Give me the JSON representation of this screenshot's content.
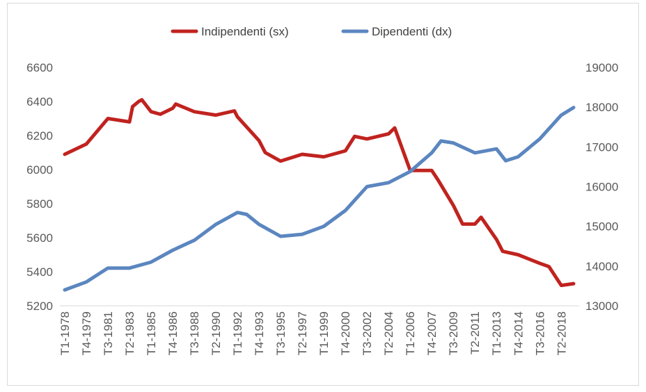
{
  "chart_data": {
    "type": "line",
    "title": "",
    "xlabel": "",
    "ylabel_left": "",
    "ylabel_right": "",
    "legend_position": "top",
    "grid": false,
    "x_tick_labels": [
      "T1-1978",
      "T4-1979",
      "T3-1981",
      "T2-1983",
      "T1-1985",
      "T4-1986",
      "T3-1988",
      "T2-1990",
      "T1-1992",
      "T4-1993",
      "T3-1995",
      "T2-1997",
      "T1-1999",
      "T4-2000",
      "T3-2002",
      "T2-2004",
      "T1-2006",
      "T4-2007",
      "T3-2009",
      "T2-2011",
      "T1-2013",
      "T4-2014",
      "T3-2016",
      "T2-2018"
    ],
    "y_left": {
      "ticks": [
        "5200",
        "5400",
        "5600",
        "5800",
        "6000",
        "6200",
        "6400",
        "6600"
      ],
      "min": 5200,
      "max": 6600
    },
    "y_right": {
      "ticks": [
        "13000",
        "14000",
        "15000",
        "16000",
        "17000",
        "18000",
        "19000"
      ],
      "min": 13000,
      "max": 19000
    },
    "series": [
      {
        "name": "Indipendenti (sx)",
        "axis": "left",
        "color": "#c0231f",
        "points": [
          [
            "T1-1978",
            6090
          ],
          [
            "T4-1979",
            6150
          ],
          [
            "T3-1981",
            6300
          ],
          [
            "T2-1983",
            6280
          ],
          [
            "T3-1983",
            6370
          ],
          [
            "T1-1984",
            6400
          ],
          [
            "T2-1984",
            6410
          ],
          [
            "T1-1985",
            6340
          ],
          [
            "T4-1985",
            6325
          ],
          [
            "T4-1986",
            6360
          ],
          [
            "T1-1987",
            6385
          ],
          [
            "T3-1988",
            6340
          ],
          [
            "T2-1990",
            6320
          ],
          [
            "T4-1991",
            6345
          ],
          [
            "T1-1992",
            6310
          ],
          [
            "T4-1993",
            6170
          ],
          [
            "T2-1994",
            6100
          ],
          [
            "T3-1995",
            6050
          ],
          [
            "T2-1997",
            6090
          ],
          [
            "T1-1999",
            6075
          ],
          [
            "T4-2000",
            6110
          ],
          [
            "T3-2001",
            6195
          ],
          [
            "T3-2002",
            6180
          ],
          [
            "T2-2004",
            6210
          ],
          [
            "T4-2004",
            6245
          ],
          [
            "T1-2006",
            5995
          ],
          [
            "T4-2007",
            5995
          ],
          [
            "T2-2008",
            5940
          ],
          [
            "T3-2009",
            5790
          ],
          [
            "T2-2010",
            5680
          ],
          [
            "T2-2011",
            5680
          ],
          [
            "T4-2011",
            5720
          ],
          [
            "T1-2013",
            5590
          ],
          [
            "T3-2013",
            5520
          ],
          [
            "T4-2014",
            5500
          ],
          [
            "T3-2016",
            5450
          ],
          [
            "T2-2017",
            5430
          ],
          [
            "T2-2018",
            5320
          ],
          [
            "T2-2019",
            5330
          ]
        ]
      },
      {
        "name": "Dipendenti (dx)",
        "axis": "right",
        "color": "#5b86c0",
        "points": [
          [
            "T1-1978",
            13400
          ],
          [
            "T4-1979",
            13600
          ],
          [
            "T3-1981",
            13950
          ],
          [
            "T2-1983",
            13950
          ],
          [
            "T1-1985",
            14100
          ],
          [
            "T4-1986",
            14400
          ],
          [
            "T3-1988",
            14650
          ],
          [
            "T2-1990",
            15050
          ],
          [
            "T1-1992",
            15350
          ],
          [
            "T4-1992",
            15300
          ],
          [
            "T4-1993",
            15050
          ],
          [
            "T3-1995",
            14750
          ],
          [
            "T2-1997",
            14800
          ],
          [
            "T1-1999",
            15000
          ],
          [
            "T4-2000",
            15400
          ],
          [
            "T3-2002",
            16000
          ],
          [
            "T2-2004",
            16100
          ],
          [
            "T1-2006",
            16380
          ],
          [
            "T4-2007",
            16850
          ],
          [
            "T3-2008",
            17150
          ],
          [
            "T3-2009",
            17100
          ],
          [
            "T2-2011",
            16850
          ],
          [
            "T1-2013",
            16950
          ],
          [
            "T4-2013",
            16650
          ],
          [
            "T4-2014",
            16750
          ],
          [
            "T3-2016",
            17200
          ],
          [
            "T2-2018",
            17800
          ],
          [
            "T2-2019",
            17990
          ]
        ]
      }
    ]
  }
}
